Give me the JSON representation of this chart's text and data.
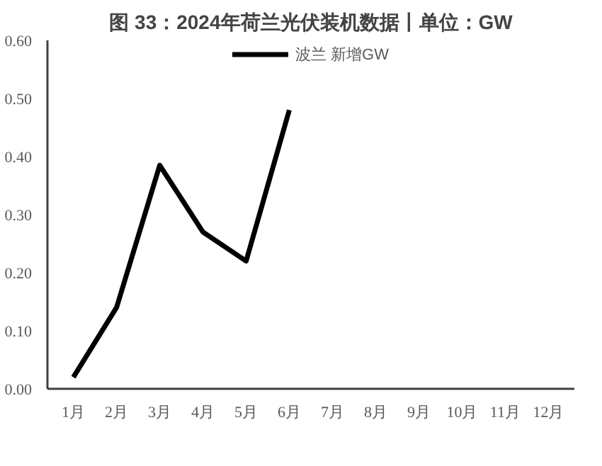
{
  "chart_data": {
    "type": "line",
    "title": "图 33：2024年荷兰光伏装机数据丨单位：GW",
    "categories": [
      "1月",
      "2月",
      "3月",
      "4月",
      "5月",
      "6月",
      "7月",
      "8月",
      "9月",
      "10月",
      "11月",
      "12月"
    ],
    "series": [
      {
        "name": "波兰 新增GW",
        "color": "#000000",
        "values": [
          0.02,
          0.14,
          0.385,
          0.27,
          0.22,
          0.48,
          null,
          null,
          null,
          null,
          null,
          null
        ]
      }
    ],
    "ylim": [
      0,
      0.6
    ],
    "yticks": [
      {
        "value": 0,
        "label": "0.00"
      },
      {
        "value": 0.1,
        "label": "0.10"
      },
      {
        "value": 0.2,
        "label": "0.20"
      },
      {
        "value": 0.3,
        "label": "0.30"
      },
      {
        "value": 0.4,
        "label": "0.40"
      },
      {
        "value": 0.5,
        "label": "0.50"
      },
      {
        "value": 0.6,
        "label": "0.60"
      }
    ],
    "grid": false,
    "legend": "top",
    "line_style": "solid",
    "marker": "none"
  }
}
